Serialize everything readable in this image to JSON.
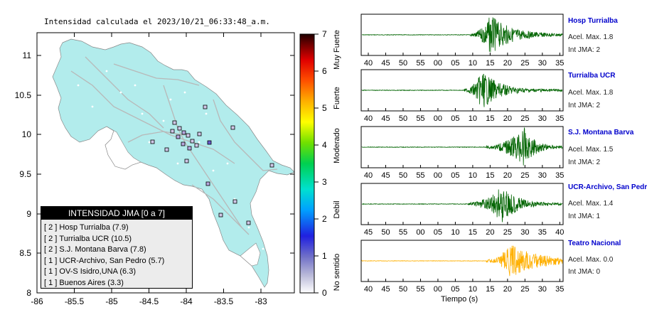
{
  "map": {
    "title": "Intensidad calculada el 2023/10/21_06:33:48_a.m.",
    "x_ticks": [
      "-86",
      "-85.5",
      "-85",
      "-84.5",
      "-84",
      "-83.5",
      "-83"
    ],
    "y_ticks": [
      "11",
      "10.5",
      "10",
      "9.5",
      "9",
      "8.5",
      "8"
    ],
    "land_color": "#b2ecec",
    "legend": {
      "title": "INTENSIDAD JMA [0 a 7]",
      "items": [
        {
          "level": "[ 2 ]",
          "name": "Hosp Turrialba (7.9)"
        },
        {
          "level": "[ 2 ]",
          "name": "Turrialba UCR (10.5)"
        },
        {
          "level": "[ 2 ]",
          "name": "S.J. Montana Barva (7.8)"
        },
        {
          "level": "[ 1 ]",
          "name": "UCR-Archivo, San Pedro (5.7)"
        },
        {
          "level": "[ 1 ]",
          "name": "OV-S Isidro,UNA (6.3)"
        },
        {
          "level": "[ 1 ]",
          "name": "Buenos Aires (3.3)"
        }
      ]
    }
  },
  "colorbar": {
    "ticks": [
      "0",
      "1",
      "2",
      "3",
      "4",
      "5",
      "6",
      "7"
    ],
    "labels": [
      "No sentido",
      "Debil",
      "Moderado",
      "Fuerte",
      "Muy Fuerte"
    ]
  },
  "waveforms": {
    "time_axis_label": "Tiempo (s)",
    "panels": [
      {
        "name": "Hosp Turrialba",
        "accel": "Acel. Max. 1.8",
        "jma": "Int JMA: 2",
        "color": "#006400",
        "ticks": [
          "40",
          "45",
          "50",
          "55",
          "00",
          "05",
          "10",
          "15",
          "20",
          "25",
          "30",
          "35"
        ]
      },
      {
        "name": "Turrialba UCR",
        "accel": "Acel. Max. 1.8",
        "jma": "Int JMA: 2",
        "color": "#006400",
        "ticks": [
          "40",
          "45",
          "50",
          "55",
          "00",
          "05",
          "10",
          "15",
          "20",
          "25",
          "30",
          "35"
        ]
      },
      {
        "name": "S.J. Montana Barva",
        "accel": "Acel. Max. 1.5",
        "jma": "Int JMA: 2",
        "color": "#006400",
        "ticks": [
          "40",
          "45",
          "50",
          "55",
          "00",
          "05",
          "10",
          "15",
          "20",
          "25",
          "30",
          "35"
        ]
      },
      {
        "name": "UCR-Archivo, San Pedro",
        "accel": "Acel. Max. 1.4",
        "jma": "Int JMA: 1",
        "color": "#006400",
        "ticks": [
          "45",
          "50",
          "55",
          "00",
          "05",
          "10",
          "15",
          "20",
          "25",
          "30",
          "35",
          "40"
        ]
      },
      {
        "name": "Teatro Nacional",
        "accel": "Acel. Max. 0.0",
        "jma": "Int JMA: 0",
        "color": "#ffb000",
        "ticks": [
          "40",
          "45",
          "50",
          "55",
          "00",
          "05",
          "10",
          "15",
          "20",
          "25",
          "30",
          "35"
        ]
      }
    ]
  }
}
